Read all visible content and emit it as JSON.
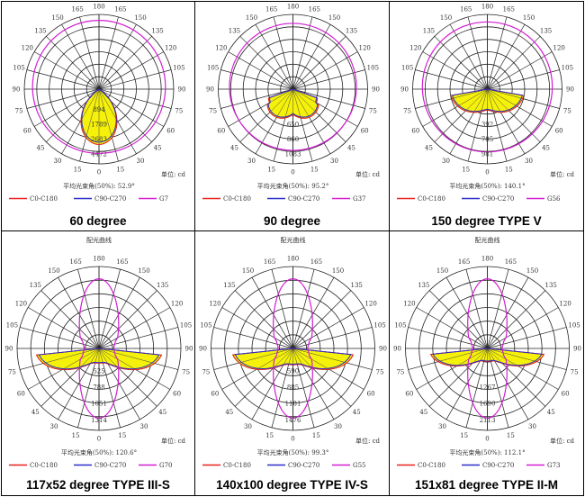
{
  "colors": {
    "c0": "#e8211c",
    "c90": "#2a2fc8",
    "g": "#d21dd2",
    "fill": "#f5f10a"
  },
  "angle_labels": [
    "180",
    "165",
    "150",
    "135",
    "120",
    "105",
    "90",
    "75",
    "60",
    "45",
    "30",
    "15",
    "0"
  ],
  "panels": [
    {
      "caption": "60 degree",
      "title": "",
      "radial": [
        "4472",
        "2683",
        "1789",
        "894"
      ],
      "beam": "平均光束角(50%): 52.9°",
      "unit": "单位: cd",
      "legend": [
        "C0-C180",
        "C90-C270",
        "G7"
      ],
      "type": "narrow"
    },
    {
      "caption": "90 degree",
      "title": "",
      "radial": [
        "1083",
        "860",
        "650"
      ],
      "beam": "平均光束角(50%): 95.2°",
      "unit": "单位: cd",
      "legend": [
        "C0-C180",
        "C90-C270",
        "G37"
      ],
      "type": "medium"
    },
    {
      "caption": "150 degree TYPE V",
      "title": "",
      "radial": [
        "981",
        "785",
        "392"
      ],
      "beam": "平均光束角(50%): 140.1°",
      "unit": "单位: cd",
      "legend": [
        "C0-C180",
        "C90-C270",
        "G56"
      ],
      "type": "wide"
    },
    {
      "caption": "117x52 degree TYPE III-S",
      "title": "配光曲线",
      "radial": [
        "1314",
        "1051",
        "788",
        "525"
      ],
      "beam": "平均光束角(50%): 120.6°",
      "unit": "单位: cd",
      "legend": [
        "C0-C180",
        "C90-C270",
        "G70"
      ],
      "type": "t3"
    },
    {
      "caption": "140x100 degree TYPE IV-S",
      "title": "配光曲线",
      "radial": [
        "1476",
        "1181",
        "885",
        "590"
      ],
      "beam": "平均光束角(50%): 99.3°",
      "unit": "单位: cd",
      "legend": [
        "C0-C180",
        "C90-C270",
        "G55"
      ],
      "type": "t4"
    },
    {
      "caption": "151x81 degree TYPE II-M",
      "title": "配光曲线",
      "radial": [
        "2113",
        "1690",
        "1267"
      ],
      "beam": "平均光束角(50%): 112.1°",
      "unit": "单位: cd",
      "legend": [
        "C0-C180",
        "C90-C270",
        "G73"
      ],
      "type": "t2"
    }
  ]
}
